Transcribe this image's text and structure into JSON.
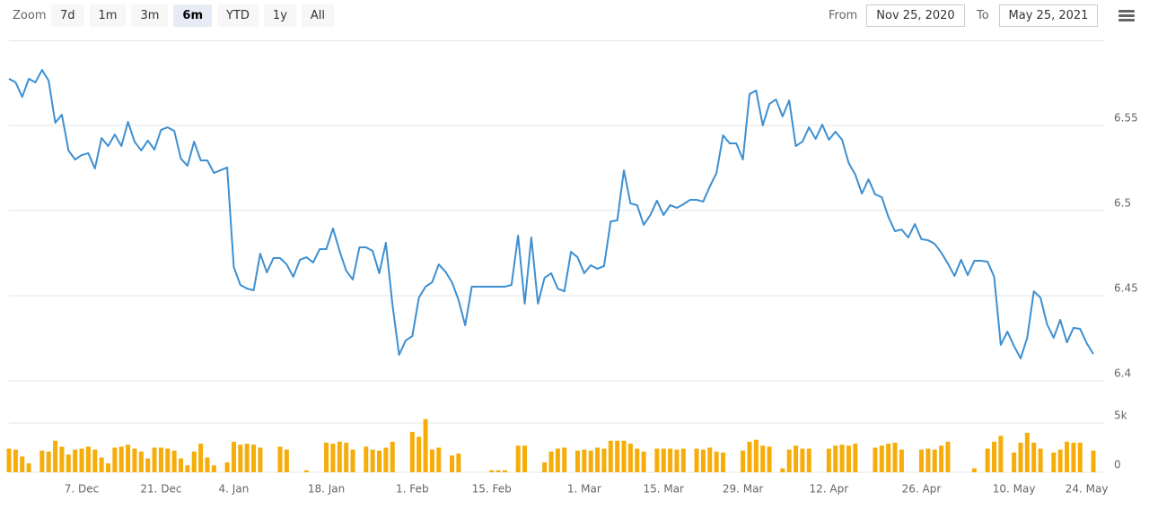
{
  "toolbar": {
    "zoom_label": "Zoom",
    "buttons": [
      "7d",
      "1m",
      "3m",
      "6m",
      "YTD",
      "1y",
      "All"
    ],
    "selected": 3,
    "from_label": "From",
    "from_value": "Nov 25, 2020",
    "to_label": "To",
    "to_value": "May 25, 2021"
  },
  "chart_data": [
    {
      "type": "line",
      "color": "#3d8fd1",
      "ylim": [
        6.4,
        6.6
      ],
      "yticks": [
        6.4,
        6.45,
        6.5,
        6.55
      ],
      "grid": true,
      "values": [
        6.5774,
        6.5753,
        6.5668,
        6.5774,
        6.5753,
        6.5826,
        6.5763,
        6.5516,
        6.5563,
        6.5353,
        6.53,
        6.5326,
        6.5337,
        6.5247,
        6.5426,
        6.5379,
        6.5447,
        6.5379,
        6.5521,
        6.5405,
        6.5353,
        6.5411,
        6.5358,
        6.5474,
        6.5489,
        6.5468,
        6.5305,
        6.5263,
        6.5405,
        6.5295,
        6.5295,
        6.5221,
        6.5237,
        6.5253,
        6.4668,
        6.4563,
        6.4542,
        6.4532,
        6.4747,
        6.4637,
        6.4721,
        6.4721,
        6.4684,
        6.4611,
        6.4711,
        6.4726,
        6.4695,
        6.4774,
        6.4774,
        6.4895,
        6.4763,
        6.4647,
        6.4595,
        6.4784,
        6.4784,
        6.4763,
        6.4632,
        6.4811,
        6.4447,
        6.4153,
        6.4237,
        6.4263,
        6.4489,
        6.4553,
        6.4579,
        6.4684,
        6.4642,
        6.4579,
        6.4474,
        6.4326,
        6.4553,
        6.4553,
        6.4553,
        6.4553,
        6.4553,
        6.4553,
        6.4563,
        6.4853,
        6.4453,
        6.4842,
        6.4453,
        6.4605,
        6.4632,
        6.4542,
        6.4526,
        6.4758,
        6.4726,
        6.4632,
        6.4679,
        6.4658,
        6.4674,
        6.4937,
        6.4942,
        6.5237,
        6.5042,
        6.5032,
        6.4916,
        6.4974,
        6.5058,
        6.4974,
        6.5032,
        6.5016,
        6.5037,
        6.5063,
        6.5063,
        6.5053,
        6.5142,
        6.5221,
        6.5442,
        6.5395,
        6.5395,
        6.53,
        6.5684,
        6.5705,
        6.55,
        6.5626,
        6.5653,
        6.5553,
        6.5647,
        6.5379,
        6.5405,
        6.5489,
        6.5421,
        6.5505,
        6.5416,
        6.5463,
        6.5416,
        6.5279,
        6.5211,
        6.51,
        6.5184,
        6.5095,
        6.5079,
        6.4963,
        6.4879,
        6.4889,
        6.4842,
        6.4921,
        6.4832,
        6.4826,
        6.4805,
        6.4753,
        6.4689,
        6.4616,
        6.4711,
        6.4621,
        6.4705,
        6.4705,
        6.47,
        6.4611,
        6.4211,
        6.4289,
        6.4205,
        6.4132,
        6.4253,
        6.4526,
        6.4489,
        6.4332,
        6.4253,
        6.4358,
        6.4226,
        6.4311,
        6.4305,
        6.4221,
        6.4158
      ]
    },
    {
      "type": "bar",
      "color": "#f6ad0a",
      "ylim": [
        0,
        6000
      ],
      "yticks": [
        0,
        {
          "value": 5000,
          "label": "5k"
        }
      ],
      "grid": true,
      "categories": [
        null,
        null,
        null,
        null,
        null,
        null,
        null,
        null,
        null,
        null,
        null,
        "7. Dec",
        null,
        null,
        null,
        null,
        null,
        null,
        null,
        null,
        null,
        null,
        null,
        "21. Dec",
        null,
        null,
        null,
        null,
        null,
        null,
        null,
        null,
        null,
        null,
        "4. Jan",
        null,
        null,
        null,
        null,
        null,
        null,
        null,
        null,
        null,
        null,
        null,
        null,
        null,
        "18. Jan",
        null,
        null,
        null,
        null,
        null,
        null,
        null,
        null,
        null,
        null,
        null,
        null,
        "1. Feb",
        null,
        null,
        null,
        null,
        null,
        null,
        null,
        null,
        null,
        null,
        null,
        "15. Feb",
        null,
        null,
        null,
        null,
        null,
        null,
        null,
        null,
        null,
        null,
        null,
        null,
        null,
        "1. Mar",
        null,
        null,
        null,
        null,
        null,
        null,
        null,
        null,
        null,
        null,
        null,
        "15. Mar",
        null,
        null,
        null,
        null,
        null,
        null,
        null,
        null,
        null,
        null,
        null,
        "29. Mar",
        null,
        null,
        null,
        null,
        null,
        null,
        null,
        null,
        null,
        null,
        null,
        null,
        "12. Apr",
        null,
        null,
        null,
        null,
        null,
        null,
        null,
        null,
        null,
        null,
        null,
        null,
        null,
        "26. Apr",
        null,
        null,
        null,
        null,
        null,
        null,
        null,
        null,
        null,
        null,
        null,
        null,
        null,
        "10. May",
        null,
        null,
        null,
        null,
        null,
        null,
        null,
        null,
        null,
        null,
        "24. May",
        null
      ],
      "values": [
        2400,
        2300,
        1600,
        900,
        0,
        2200,
        2100,
        3200,
        2600,
        1800,
        2300,
        2400,
        2600,
        2300,
        1500,
        900,
        2500,
        2600,
        2800,
        2400,
        2100,
        1400,
        2500,
        2500,
        2400,
        2200,
        1400,
        700,
        2100,
        2900,
        1500,
        700,
        0,
        1000,
        3100,
        2800,
        2900,
        2800,
        2500,
        0,
        0,
        2600,
        2300,
        0,
        0,
        200,
        0,
        0,
        3000,
        2900,
        3100,
        3000,
        2300,
        0,
        2600,
        2300,
        2200,
        2500,
        3100,
        0,
        0,
        4100,
        3600,
        5400,
        2300,
        2500,
        0,
        1700,
        1900,
        0,
        0,
        0,
        0,
        200,
        200,
        200,
        0,
        2700,
        2700,
        0,
        0,
        1000,
        2100,
        2400,
        2500,
        0,
        2200,
        2300,
        2200,
        2500,
        2400,
        3200,
        3200,
        3200,
        2900,
        2400,
        2100,
        0,
        2400,
        2400,
        2400,
        2300,
        2400,
        0,
        2400,
        2300,
        2500,
        2100,
        2000,
        0,
        0,
        2200,
        3100,
        3300,
        2700,
        2600,
        0,
        400,
        2300,
        2700,
        2400,
        2400,
        0,
        0,
        2400,
        2700,
        2800,
        2700,
        2900,
        0,
        0,
        2500,
        2700,
        2900,
        3000,
        2300,
        0,
        0,
        2300,
        2400,
        2300,
        2700,
        3100,
        0,
        0,
        0,
        400,
        0,
        2400,
        3100,
        3700,
        0,
        2000,
        3000,
        4000,
        3000,
        2400,
        0,
        2000,
        2300,
        3100,
        3000,
        3000,
        0,
        2200
      ]
    }
  ]
}
